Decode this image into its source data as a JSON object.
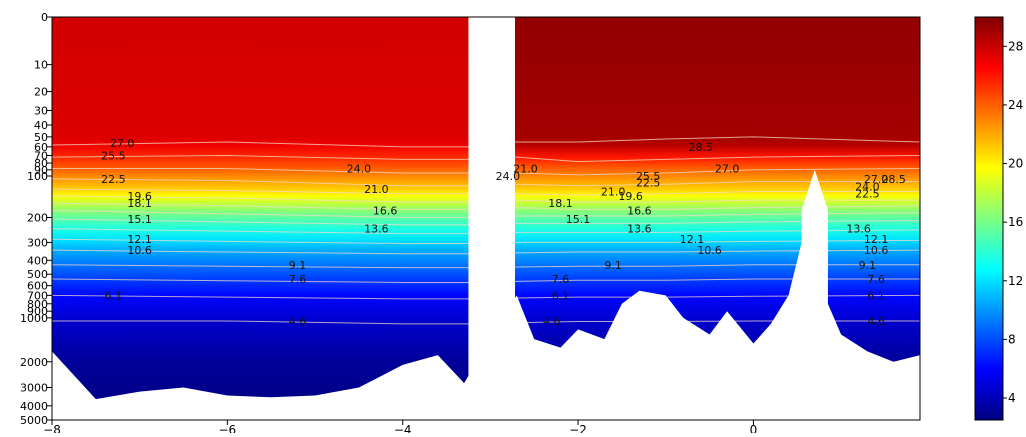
{
  "chart_data": {
    "type": "heatmap",
    "title": "",
    "xlabel": "",
    "ylabel": "",
    "xlim": [
      -8,
      1.9
    ],
    "x_ticks": [
      -8,
      -6,
      -4,
      -2,
      0
    ],
    "x_tick_labels": [
      "−8",
      "−6",
      "−4",
      "−2",
      "0"
    ],
    "y_scale": "log (depth, inverted)",
    "ylim": [
      0,
      5000
    ],
    "y_ticks": [
      0,
      10,
      20,
      30,
      40,
      50,
      60,
      70,
      80,
      90,
      100,
      200,
      300,
      400,
      500,
      600,
      700,
      800,
      900,
      1000,
      2000,
      3000,
      4000,
      5000
    ],
    "y_tick_labels": [
      "0",
      "10",
      "20",
      "30",
      "40",
      "50",
      "60",
      "70",
      "80",
      "90",
      "100",
      "200",
      "300",
      "400",
      "500",
      "600",
      "700",
      "800",
      "900",
      "1000",
      "2000",
      "3000",
      "4000",
      "5000"
    ],
    "colorbar": {
      "colormap": "jet",
      "range": [
        2.5,
        30
      ],
      "ticks": [
        4,
        8,
        12,
        16,
        20,
        24,
        28
      ],
      "tick_labels": [
        "4",
        "8",
        "12",
        "16",
        "20",
        "24",
        "28"
      ]
    },
    "colormap_stops": [
      "#00007f",
      "#0000ff",
      "#007fff",
      "#00ffff",
      "#7fff7f",
      "#ffff00",
      "#ff7f00",
      "#ff0000",
      "#7f0000"
    ],
    "contour_levels": [
      4.6,
      6.1,
      7.6,
      9.1,
      10.6,
      12.1,
      13.6,
      15.1,
      16.6,
      18.1,
      19.6,
      21.0,
      22.5,
      24.0,
      25.5,
      27.0,
      28.5
    ],
    "contour_profile": {
      "x": [
        -8,
        -6,
        -4,
        -3.2,
        -2.7,
        -2,
        -1,
        0,
        1.9
      ],
      "depth_by_level": {
        "27.0": [
          58,
          55,
          60,
          60,
          55,
          55,
          52,
          50,
          55
        ],
        "25.5": [
          72,
          70,
          75,
          75,
          72,
          78,
          75,
          72,
          70
        ],
        "24.0": [
          88,
          88,
          95,
          95,
          95,
          98,
          95,
          90,
          88
        ],
        "22.5": [
          105,
          108,
          118,
          118,
          115,
          118,
          115,
          110,
          110
        ],
        "21.0": [
          125,
          128,
          135,
          135,
          135,
          138,
          135,
          130,
          130
        ],
        "19.6": [
          140,
          145,
          155,
          155,
          150,
          155,
          155,
          150,
          150
        ],
        "18.1": [
          158,
          165,
          175,
          175,
          170,
          175,
          175,
          170,
          165
        ],
        "16.6": [
          178,
          188,
          200,
          200,
          195,
          195,
          195,
          190,
          185
        ],
        "15.1": [
          205,
          215,
          225,
          225,
          220,
          220,
          220,
          215,
          210
        ],
        "13.6": [
          240,
          250,
          260,
          260,
          255,
          255,
          255,
          250,
          245
        ],
        "12.1": [
          285,
          295,
          305,
          305,
          300,
          300,
          300,
          295,
          290
        ],
        "10.6": [
          340,
          350,
          360,
          360,
          355,
          350,
          350,
          345,
          340
        ],
        "9.1": [
          430,
          440,
          450,
          450,
          445,
          440,
          440,
          430,
          430
        ],
        "7.6": [
          540,
          555,
          570,
          570,
          560,
          550,
          550,
          540,
          540
        ],
        "6.1": [
          700,
          720,
          740,
          740,
          730,
          720,
          720,
          710,
          700
        ],
        "4.6": [
          1050,
          1050,
          1100,
          1100,
          1080,
          1060,
          1060,
          1050,
          1050
        ]
      }
    },
    "contour_label_texts": [
      "27.0",
      "25.5",
      "22.5",
      "19.6",
      "18.1",
      "15.1",
      "12.1",
      "10.6",
      "6.1",
      "24.0",
      "21.0",
      "16.6",
      "13.6",
      "9.1",
      "7.6",
      "4.6",
      "21.0",
      "24.0",
      "18.1",
      "15.1",
      "21.0",
      "19.6",
      "25.5",
      "22.5",
      "16.6",
      "13.6",
      "12.1",
      "10.6",
      "9.1",
      "7.6",
      "6.1",
      "4.6",
      "28.5",
      "27.0",
      "27.0",
      "28.5",
      "24.0",
      "22.5",
      "13.6",
      "12.1",
      "10.6",
      "9.1",
      "7.6",
      "6.1",
      "4.6"
    ],
    "temperature_by_depth": {
      "depth": [
        0,
        50,
        58,
        72,
        88,
        105,
        125,
        140,
        158,
        178,
        205,
        240,
        285,
        340,
        430,
        540,
        700,
        1050,
        2000,
        5000
      ],
      "west_of_gap": [
        27.8,
        27.5,
        27.0,
        25.5,
        24.0,
        22.5,
        21.0,
        19.6,
        18.1,
        16.6,
        15.1,
        13.6,
        12.1,
        10.6,
        9.1,
        7.6,
        6.1,
        4.6,
        3.2,
        2.5
      ],
      "east_of_gap": [
        29.5,
        29.0,
        28.5,
        26.0,
        24.0,
        22.5,
        21.0,
        19.6,
        18.1,
        16.6,
        15.1,
        13.6,
        12.1,
        10.6,
        9.1,
        7.6,
        6.1,
        4.6,
        3.2,
        2.5
      ]
    },
    "no_data_gaps": [
      {
        "x": [
          -3.25,
          -2.72
        ],
        "depth": [
          0,
          5000
        ]
      },
      {
        "x": [
          0.55,
          0.85
        ],
        "depth": [
          90,
          5000
        ]
      }
    ],
    "bottom_depth_profile": {
      "x": [
        -8,
        -7.5,
        -7,
        -6.5,
        -6,
        -5.5,
        -5,
        -4.5,
        -4,
        -3.6,
        -3.3,
        -2.7,
        -2.5,
        -2.2,
        -2,
        -1.7,
        -1.5,
        -1.3,
        -1,
        -0.8,
        -0.5,
        -0.3,
        0,
        0.2,
        0.4,
        0.5,
        0.55,
        0.85,
        1,
        1.3,
        1.6,
        1.9
      ],
      "depth": [
        1700,
        3600,
        3200,
        3000,
        3400,
        3500,
        3400,
        3000,
        2100,
        1800,
        2800,
        700,
        1400,
        1600,
        1200,
        1400,
        800,
        650,
        700,
        1000,
        1300,
        900,
        1500,
        1100,
        700,
        400,
        300,
        800,
        1300,
        1700,
        2000,
        1800
      ]
    }
  }
}
